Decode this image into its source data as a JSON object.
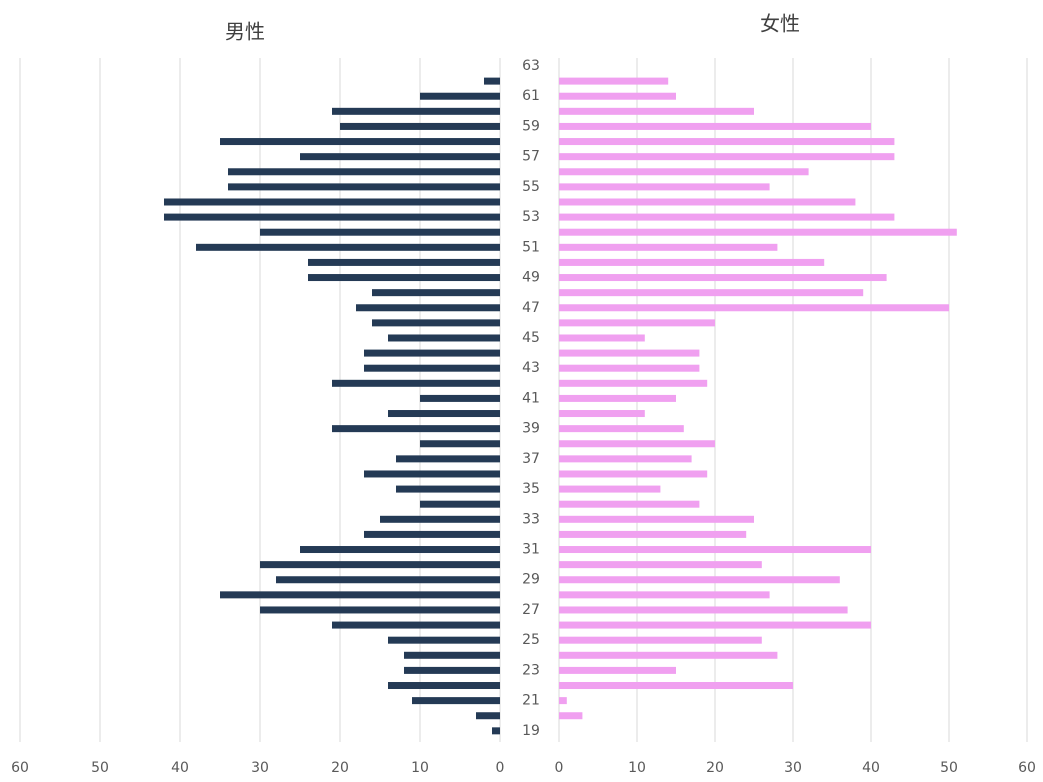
{
  "chart_data": [
    {
      "type": "hbar",
      "title": "男性",
      "color": "#243a55",
      "values": [
        0,
        2,
        10,
        21,
        20,
        35,
        25,
        34,
        34,
        42,
        42,
        30,
        38,
        24,
        24,
        16,
        18,
        16,
        14,
        17,
        17,
        21,
        10,
        14,
        21,
        10,
        13,
        17,
        13,
        10,
        15,
        17,
        25,
        30,
        28,
        35,
        30,
        21,
        14,
        12,
        12,
        14,
        11,
        3,
        1
      ],
      "xlim": [
        60,
        0
      ],
      "xticks": [
        60,
        50,
        40,
        30,
        20,
        10,
        0
      ],
      "grid": true
    },
    {
      "type": "hbar",
      "title": "女性",
      "color": "#f0a0f0",
      "categories": [
        63,
        null,
        61,
        null,
        59,
        null,
        57,
        null,
        55,
        null,
        53,
        null,
        51,
        null,
        49,
        null,
        47,
        null,
        45,
        null,
        43,
        null,
        41,
        null,
        39,
        null,
        37,
        null,
        35,
        null,
        33,
        null,
        31,
        null,
        29,
        null,
        27,
        null,
        25,
        null,
        23,
        null,
        21,
        null,
        19
      ],
      "values": [
        0,
        14,
        15,
        25,
        40,
        43,
        43,
        32,
        27,
        38,
        43,
        51,
        28,
        34,
        42,
        39,
        50,
        20,
        11,
        18,
        18,
        19,
        15,
        11,
        16,
        20,
        17,
        19,
        13,
        18,
        25,
        24,
        40,
        26,
        36,
        27,
        37,
        40,
        26,
        28,
        15,
        30,
        1,
        3,
        0
      ],
      "xlim": [
        0,
        60
      ],
      "xticks": [
        0,
        10,
        20,
        30,
        40,
        50,
        60
      ],
      "grid": true
    }
  ]
}
